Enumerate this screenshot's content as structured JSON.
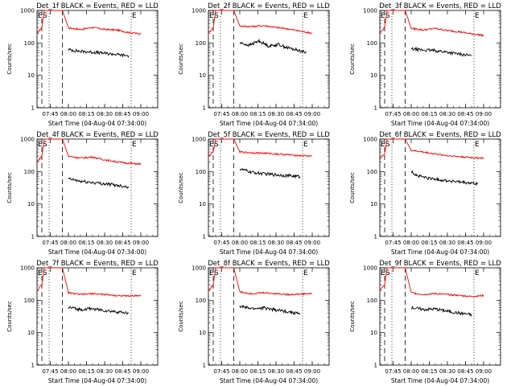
{
  "chart_data": [
    {
      "type": "line",
      "title": "Det_1f BLACK = Events, RED = LLD",
      "xlabel": "Start Time (04-Aug-04 07:34:00)",
      "ylabel": "Counts/sec",
      "scale_y": "log",
      "ylim": [
        1,
        1000
      ],
      "xlim": [
        "07:34:00",
        "09:14:00"
      ],
      "x_ticks": [
        "07:45",
        "08:00",
        "08:15",
        "08:30",
        "08:45",
        "09:00"
      ],
      "y_ticks": [
        "1",
        "10",
        "100",
        "1000"
      ],
      "markers": {
        "S": "07:38",
        "E": "08:52"
      },
      "vlines_dashed": [
        "07:38",
        "07:55"
      ],
      "vlines_dotted": [
        "07:34",
        "07:44",
        "08:52",
        "09:14"
      ],
      "series": [
        {
          "color": "#ff0000",
          "x": [
            "07:34",
            "07:38",
            "07:40",
            "07:43",
            "07:45",
            "07:55",
            "08:00",
            "08:10",
            "08:20",
            "08:30",
            "08:40",
            "08:50",
            "09:00"
          ],
          "values": [
            200,
            300,
            1000,
            1000,
            1000,
            1000,
            290,
            260,
            300,
            260,
            250,
            210,
            190
          ]
        },
        {
          "color": "#000000",
          "x": [
            "08:00",
            "08:10",
            "08:20",
            "08:30",
            "08:40",
            "08:50"
          ],
          "values": [
            62,
            55,
            52,
            48,
            44,
            40
          ]
        }
      ]
    },
    {
      "type": "line",
      "title": "Det_2f BLACK = Events, RED = LLD",
      "xlabel": "Start Time (04-Aug-04 07:34:00)",
      "ylabel": "Counts/sec",
      "scale_y": "log",
      "ylim": [
        1,
        1000
      ],
      "xlim": [
        "07:34:00",
        "09:14:00"
      ],
      "x_ticks": [
        "07:45",
        "08:00",
        "08:15",
        "08:30",
        "08:45",
        "09:00"
      ],
      "y_ticks": [
        "1",
        "10",
        "100",
        "1000"
      ],
      "markers": {
        "S": "07:38",
        "E": "08:52"
      },
      "vlines_dashed": [
        "07:38",
        "07:55"
      ],
      "vlines_dotted": [
        "07:34",
        "07:44",
        "08:52",
        "09:14"
      ],
      "series": [
        {
          "color": "#ff0000",
          "x": [
            "07:34",
            "07:38",
            "07:40",
            "07:43",
            "07:45",
            "07:55",
            "08:00",
            "08:10",
            "08:20",
            "08:30",
            "08:40",
            "08:50",
            "09:00"
          ],
          "values": [
            200,
            300,
            1000,
            1000,
            1000,
            1000,
            330,
            320,
            340,
            300,
            270,
            230,
            200
          ]
        },
        {
          "color": "#000000",
          "x": [
            "08:00",
            "08:08",
            "08:16",
            "08:24",
            "08:32",
            "08:40",
            "08:48",
            "08:55"
          ],
          "values": [
            100,
            85,
            115,
            80,
            90,
            70,
            60,
            50
          ]
        }
      ]
    },
    {
      "type": "line",
      "title": "Det_3f BLACK = Events, RED = LLD",
      "xlabel": "Start Time (04-Aug-04 07:34:00)",
      "ylabel": "Counts/sec",
      "scale_y": "log",
      "ylim": [
        1,
        1000
      ],
      "xlim": [
        "07:34:00",
        "09:14:00"
      ],
      "x_ticks": [
        "07:45",
        "08:00",
        "08:15",
        "08:30",
        "08:45",
        "09:00"
      ],
      "y_ticks": [
        "1",
        "10",
        "100",
        "1000"
      ],
      "markers": {
        "S": "07:38",
        "E": "08:52"
      },
      "vlines_dashed": [
        "07:38",
        "07:55"
      ],
      "vlines_dotted": [
        "07:34",
        "07:44",
        "08:52",
        "09:14"
      ],
      "series": [
        {
          "color": "#ff0000",
          "x": [
            "07:34",
            "07:38",
            "07:40",
            "07:43",
            "07:45",
            "07:55",
            "08:00",
            "08:10",
            "08:20",
            "08:30",
            "08:40",
            "08:50",
            "09:00"
          ],
          "values": [
            200,
            300,
            1000,
            1000,
            1000,
            1000,
            280,
            250,
            280,
            240,
            220,
            190,
            170
          ]
        },
        {
          "color": "#000000",
          "x": [
            "08:00",
            "08:10",
            "08:20",
            "08:30",
            "08:40",
            "08:50"
          ],
          "values": [
            65,
            60,
            58,
            52,
            45,
            40
          ]
        }
      ]
    },
    {
      "type": "line",
      "title": "Det_4f BLACK = Events, RED = LLD",
      "xlabel": "Start Time (04-Aug-04 07:34:00)",
      "ylabel": "Counts/sec",
      "scale_y": "log",
      "ylim": [
        1,
        1000
      ],
      "xlim": [
        "07:34:00",
        "09:14:00"
      ],
      "x_ticks": [
        "07:45",
        "08:00",
        "08:15",
        "08:30",
        "08:45",
        "09:00"
      ],
      "y_ticks": [
        "1",
        "10",
        "100",
        "1000"
      ],
      "markers": {
        "S": "07:38",
        "E": "08:52"
      },
      "vlines_dashed": [
        "07:38",
        "07:55"
      ],
      "vlines_dotted": [
        "07:34",
        "07:44",
        "08:52",
        "09:14"
      ],
      "series": [
        {
          "color": "#ff0000",
          "x": [
            "07:34",
            "07:38",
            "07:40",
            "07:43",
            "07:45",
            "07:55",
            "08:00",
            "08:10",
            "08:20",
            "08:30",
            "08:40",
            "08:50",
            "09:00"
          ],
          "values": [
            200,
            300,
            1000,
            1000,
            1000,
            1000,
            300,
            260,
            280,
            230,
            200,
            180,
            170
          ]
        },
        {
          "color": "#000000",
          "x": [
            "08:00",
            "08:10",
            "08:20",
            "08:30",
            "08:40",
            "08:50"
          ],
          "values": [
            60,
            50,
            46,
            42,
            38,
            34
          ]
        }
      ]
    },
    {
      "type": "line",
      "title": "Det_5f BLACK = Events, RED = LLD",
      "xlabel": "Start Time (04-Aug-04 07:34:00)",
      "ylabel": "Counts/sec",
      "scale_y": "log",
      "ylim": [
        1,
        1000
      ],
      "xlim": [
        "07:34:00",
        "09:14:00"
      ],
      "x_ticks": [
        "07:45",
        "08:00",
        "08:15",
        "08:30",
        "08:45",
        "09:00"
      ],
      "y_ticks": [
        "1",
        "10",
        "100",
        "1000"
      ],
      "markers": {
        "S": "07:38",
        "E": "08:52"
      },
      "vlines_dashed": [
        "07:38",
        "07:55"
      ],
      "vlines_dotted": [
        "07:34",
        "07:44",
        "08:52",
        "09:14"
      ],
      "series": [
        {
          "color": "#ff0000",
          "x": [
            "07:34",
            "07:38",
            "07:40",
            "07:43",
            "07:45",
            "07:55",
            "08:00",
            "08:10",
            "08:20",
            "08:30",
            "08:40",
            "08:50",
            "09:00"
          ],
          "values": [
            300,
            400,
            1000,
            1000,
            1000,
            1000,
            400,
            380,
            370,
            350,
            330,
            310,
            300
          ]
        },
        {
          "color": "#000000",
          "x": [
            "08:00",
            "08:10",
            "08:20",
            "08:30",
            "08:40",
            "08:50"
          ],
          "values": [
            120,
            95,
            85,
            80,
            75,
            70
          ]
        }
      ]
    },
    {
      "type": "line",
      "title": "Det_6f BLACK = Events, RED = LLD",
      "xlabel": "Start Time (04-Aug-04 07:34:00)",
      "ylabel": "Counts/sec",
      "scale_y": "log",
      "ylim": [
        1,
        1000
      ],
      "xlim": [
        "07:34:00",
        "09:14:00"
      ],
      "x_ticks": [
        "07:45",
        "08:00",
        "08:15",
        "08:30",
        "08:45",
        "09:00"
      ],
      "y_ticks": [
        "1",
        "10",
        "100",
        "1000"
      ],
      "markers": {
        "S": "07:38",
        "E": "08:52"
      },
      "vlines_dashed": [
        "07:38",
        "07:55"
      ],
      "vlines_dotted": [
        "07:34",
        "07:44",
        "08:52",
        "09:14"
      ],
      "series": [
        {
          "color": "#ff0000",
          "x": [
            "07:34",
            "07:38",
            "07:40",
            "07:43",
            "07:45",
            "07:55",
            "08:00",
            "08:10",
            "08:20",
            "08:30",
            "08:40",
            "08:50",
            "09:00"
          ],
          "values": [
            250,
            350,
            1000,
            1000,
            1000,
            1000,
            450,
            400,
            350,
            310,
            290,
            270,
            260
          ]
        },
        {
          "color": "#000000",
          "x": [
            "08:00",
            "08:05",
            "08:15",
            "08:25",
            "08:35",
            "08:45",
            "08:55"
          ],
          "values": [
            100,
            75,
            62,
            55,
            50,
            45,
            42
          ]
        }
      ]
    },
    {
      "type": "line",
      "title": "Det_7f BLACK = Events, RED = LLD",
      "xlabel": "Start Time (04-Aug-04 07:34:00)",
      "ylabel": "Counts/sec",
      "scale_y": "log",
      "ylim": [
        1,
        1000
      ],
      "xlim": [
        "07:34:00",
        "09:14:00"
      ],
      "x_ticks": [
        "07:45",
        "08:00",
        "08:15",
        "08:30",
        "08:45",
        "09:00"
      ],
      "y_ticks": [
        "1",
        "10",
        "100",
        "1000"
      ],
      "markers": {
        "S": "07:38",
        "E": "08:52"
      },
      "vlines_dashed": [
        "07:38",
        "07:55"
      ],
      "vlines_dotted": [
        "07:34",
        "07:44",
        "08:52",
        "09:14"
      ],
      "series": [
        {
          "color": "#ff0000",
          "x": [
            "07:34",
            "07:38",
            "07:40",
            "07:43",
            "07:45",
            "07:55",
            "08:00",
            "08:10",
            "08:20",
            "08:30",
            "08:40",
            "08:50",
            "09:00"
          ],
          "values": [
            200,
            300,
            1000,
            1000,
            1000,
            1000,
            170,
            150,
            160,
            150,
            140,
            135,
            140
          ]
        },
        {
          "color": "#000000",
          "x": [
            "08:00",
            "08:10",
            "08:20",
            "08:30",
            "08:40",
            "08:50"
          ],
          "values": [
            60,
            52,
            55,
            48,
            44,
            40
          ]
        }
      ]
    },
    {
      "type": "line",
      "title": "Det_8f BLACK = Events, RED = LLD",
      "xlabel": "Start Time (04-Aug-04 07:34:00)",
      "ylabel": "Counts/sec",
      "scale_y": "log",
      "ylim": [
        1,
        1000
      ],
      "xlim": [
        "07:34:00",
        "09:14:00"
      ],
      "x_ticks": [
        "07:45",
        "08:00",
        "08:15",
        "08:30",
        "08:45",
        "09:00"
      ],
      "y_ticks": [
        "1",
        "10",
        "100",
        "1000"
      ],
      "markers": {
        "S": "07:38",
        "E": "08:52"
      },
      "vlines_dashed": [
        "07:38",
        "07:55"
      ],
      "vlines_dotted": [
        "07:34",
        "07:44",
        "08:52",
        "09:14"
      ],
      "series": [
        {
          "color": "#ff0000",
          "x": [
            "07:34",
            "07:38",
            "07:40",
            "07:43",
            "07:45",
            "07:55",
            "08:00",
            "08:10",
            "08:20",
            "08:30",
            "08:40",
            "08:50",
            "09:00"
          ],
          "values": [
            200,
            300,
            1000,
            1000,
            1000,
            1000,
            180,
            160,
            170,
            160,
            150,
            155,
            160
          ]
        },
        {
          "color": "#000000",
          "x": [
            "08:00",
            "08:10",
            "08:20",
            "08:30",
            "08:40",
            "08:50"
          ],
          "values": [
            65,
            55,
            58,
            50,
            45,
            38
          ]
        }
      ]
    },
    {
      "type": "line",
      "title": "Det_9f BLACK = Events, RED = LLD",
      "xlabel": "Start Time (04-Aug-04 07:34:00)",
      "ylabel": "Counts/sec",
      "scale_y": "log",
      "ylim": [
        1,
        1000
      ],
      "xlim": [
        "07:34:00",
        "09:14:00"
      ],
      "x_ticks": [
        "07:45",
        "08:00",
        "08:15",
        "08:30",
        "08:45",
        "09:00"
      ],
      "y_ticks": [
        "1",
        "10",
        "100",
        "1000"
      ],
      "markers": {
        "S": "07:38",
        "E": "08:52"
      },
      "vlines_dashed": [
        "07:38",
        "07:55"
      ],
      "vlines_dotted": [
        "07:34",
        "07:44",
        "08:52",
        "09:14"
      ],
      "series": [
        {
          "color": "#ff0000",
          "x": [
            "07:34",
            "07:38",
            "07:40",
            "07:43",
            "07:45",
            "07:55",
            "08:00",
            "08:10",
            "08:20",
            "08:30",
            "08:40",
            "08:50",
            "09:00"
          ],
          "values": [
            200,
            300,
            1000,
            1000,
            1000,
            1000,
            170,
            150,
            160,
            150,
            140,
            130,
            140
          ]
        },
        {
          "color": "#000000",
          "x": [
            "08:00",
            "08:10",
            "08:20",
            "08:30",
            "08:40",
            "08:50"
          ],
          "values": [
            60,
            52,
            54,
            46,
            40,
            36
          ]
        }
      ]
    }
  ]
}
